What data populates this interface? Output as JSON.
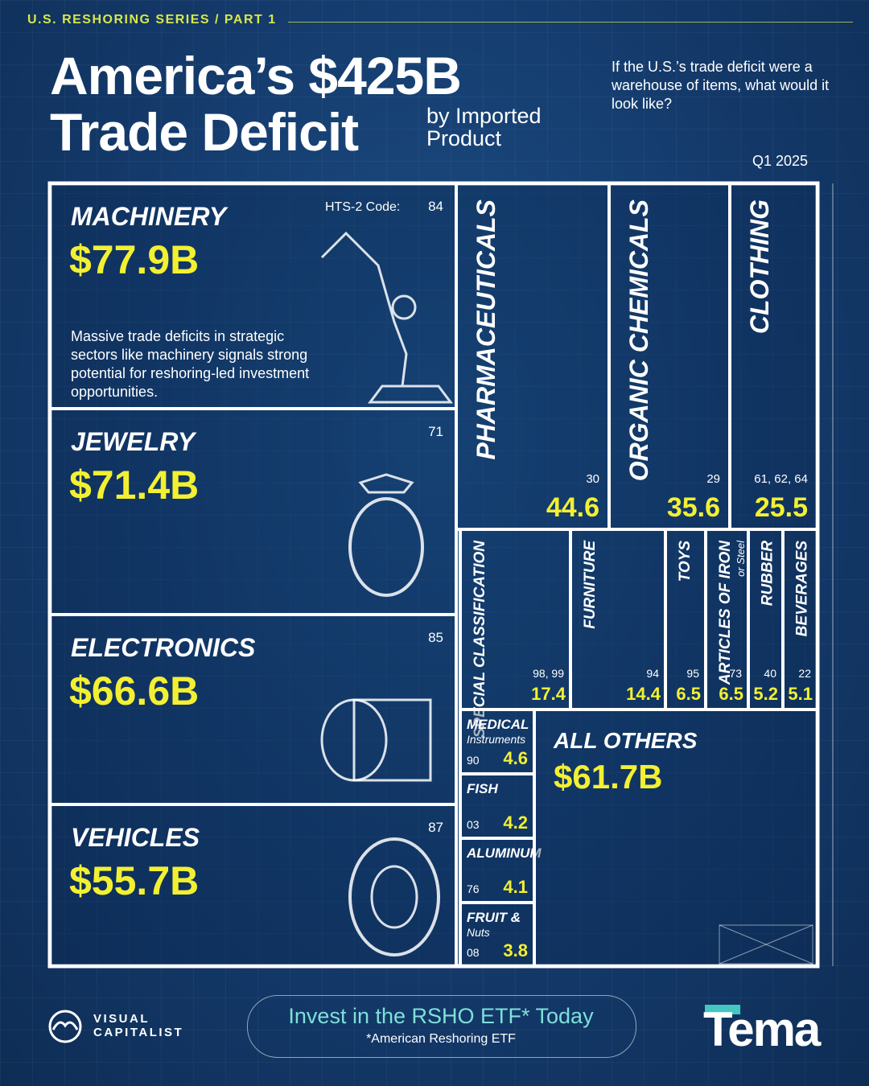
{
  "header": {
    "series": "U.S. RESHORING SERIES / PART 1",
    "title_line1": "America’s $425B",
    "title_line2": "Trade Deficit",
    "title_sub": "by Imported Product",
    "question": "If the U.S.’s trade deficit were a warehouse of items, what would it look like?",
    "period": "Q1 2025"
  },
  "chart_data": {
    "type": "treemap",
    "title": "America’s $425B Trade Deficit by Imported Product",
    "period": "Q1 2025",
    "code_label": "HTS-2 Code:",
    "note": "Massive trade deficits in strategic sectors like machinery signals strong potential for reshoring-led investment opportunities.",
    "items": [
      {
        "name": "MACHINERY",
        "code": "84",
        "value": 77.9,
        "label": "$77.9B"
      },
      {
        "name": "JEWELRY",
        "code": "71",
        "value": 71.4,
        "label": "$71.4B"
      },
      {
        "name": "ELECTRONICS",
        "code": "85",
        "value": 66.6,
        "label": "$66.6B"
      },
      {
        "name": "VEHICLES",
        "code": "87",
        "value": 55.7,
        "label": "$55.7B"
      },
      {
        "name": "PHARMACEUTICALS",
        "code": "30",
        "value": 44.6,
        "label": "44.6"
      },
      {
        "name": "ORGANIC CHEMICALS",
        "code": "29",
        "value": 35.6,
        "label": "35.6"
      },
      {
        "name": "CLOTHING",
        "code": "61, 62, 64",
        "value": 25.5,
        "label": "25.5"
      },
      {
        "name": "SPECIAL CLASSIFICATION",
        "code": "98, 99",
        "value": 17.4,
        "label": "17.4"
      },
      {
        "name": "FURNITURE",
        "code": "94",
        "value": 14.4,
        "label": "14.4"
      },
      {
        "name": "TOYS",
        "code": "95",
        "value": 6.5,
        "label": "6.5"
      },
      {
        "name": "ARTICLES OF IRON",
        "sub": "or Steel",
        "code": "73",
        "value": 6.5,
        "label": "6.5"
      },
      {
        "name": "RUBBER",
        "code": "40",
        "value": 5.2,
        "label": "5.2"
      },
      {
        "name": "BEVERAGES",
        "code": "22",
        "value": 5.1,
        "label": "5.1"
      },
      {
        "name": "MEDICAL",
        "sub": "Instruments",
        "code": "90",
        "value": 4.6,
        "label": "4.6"
      },
      {
        "name": "FISH",
        "code": "03",
        "value": 4.2,
        "label": "4.2"
      },
      {
        "name": "ALUMINUM",
        "code": "76",
        "value": 4.1,
        "label": "4.1"
      },
      {
        "name": "FRUIT &",
        "sub": "Nuts",
        "code": "08",
        "value": 3.8,
        "label": "3.8"
      },
      {
        "name": "ALL OTHERS",
        "code": "",
        "value": 61.7,
        "label": "$61.7B"
      }
    ]
  },
  "footer": {
    "logo_left": "VISUAL CAPITALIST",
    "logo_left_line1": "VISUAL",
    "logo_left_line2": "CAPITALIST",
    "cta": "Invest in the RSHO ETF*  Today",
    "cta_note": "*American Reshoring ETF",
    "logo_right": "Tema"
  },
  "colors": {
    "background": "#143a6b",
    "value_yellow": "#f3f032",
    "accent_teal": "#43c7c0",
    "series_yellow": "#d7e84a",
    "line": "#ffffff"
  }
}
